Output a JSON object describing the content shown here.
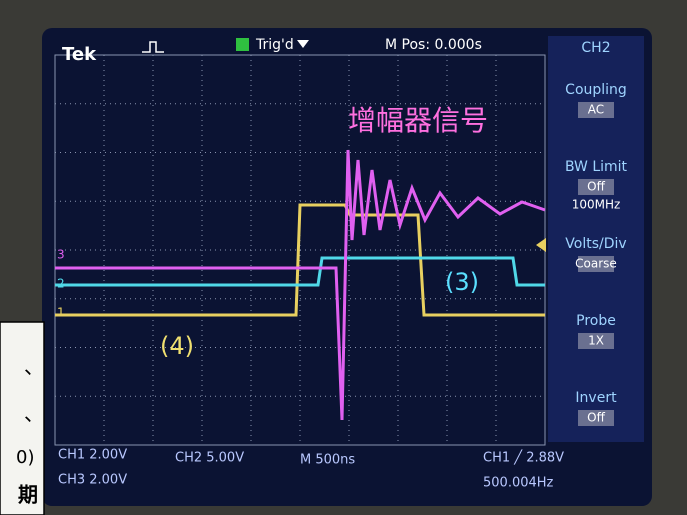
{
  "header": {
    "brand": "Tek",
    "trigger_status": "Trig'd",
    "position": "M Pos: 0.000s"
  },
  "menu": {
    "channel": "CH2",
    "items": [
      {
        "label": "Coupling",
        "value": "AC"
      },
      {
        "label": "BW Limit",
        "value": "Off",
        "note": "100MHz"
      },
      {
        "label": "Volts/Div",
        "value": "Coarse"
      },
      {
        "label": "Probe",
        "value": "1X"
      },
      {
        "label": "Invert",
        "value": "Off"
      }
    ]
  },
  "annotations": {
    "title": "增幅器信号",
    "label_3": "(3)",
    "label_4": "(4)"
  },
  "markers": [
    "3",
    "2",
    "1"
  ],
  "footer": {
    "ch1": "CH1 2.00V",
    "ch2": "CH2 5.00V",
    "timebase": "M 500ns",
    "trigger": "CH1 ╱ 2.88V",
    "ch3": "CH3 2.00V",
    "frequency": "500.004Hz"
  },
  "paper_fragments": [
    "、",
    "、",
    "0)",
    "期"
  ]
}
